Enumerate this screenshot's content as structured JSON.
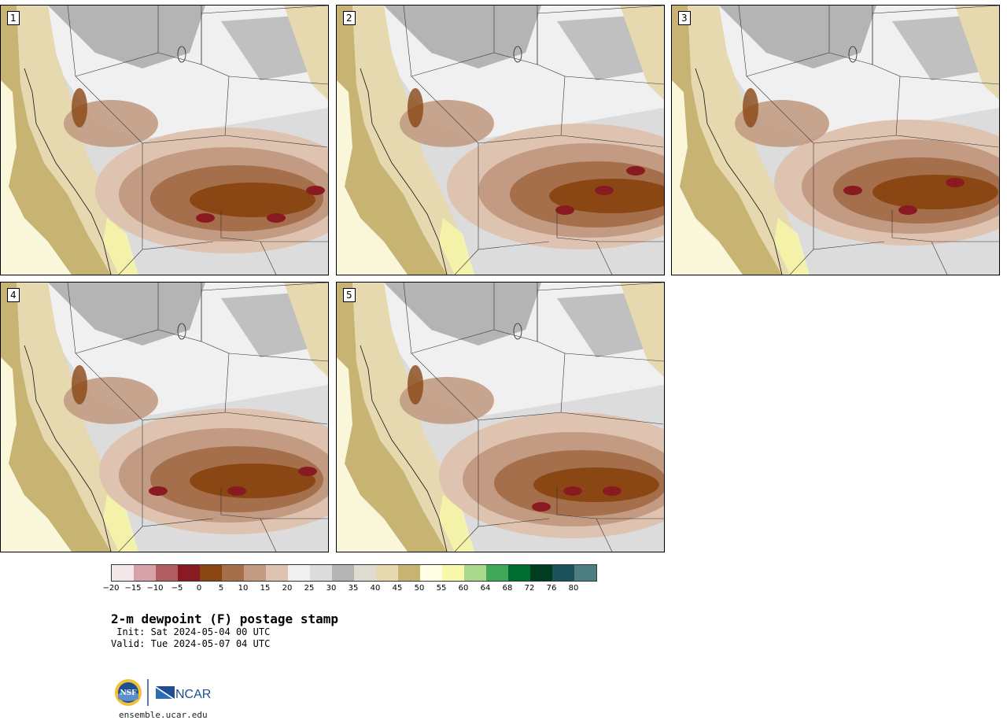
{
  "panels": [
    {
      "label": "1"
    },
    {
      "label": "2"
    },
    {
      "label": "3"
    },
    {
      "label": "4"
    },
    {
      "label": "5"
    }
  ],
  "colorbar": {
    "colors": [
      "#f3e6e8",
      "#d4a2a7",
      "#b05c62",
      "#8a1a22",
      "#8a4714",
      "#a56f4c",
      "#c29b82",
      "#dfc3b1",
      "#f0f0f0",
      "#dcdcdc",
      "#b4b4b4",
      "#dedbd0",
      "#e6d9b0",
      "#c8b472",
      "#fffde4",
      "#f8f8a8",
      "#a8d88c",
      "#40a858",
      "#006d30",
      "#003d20",
      "#1b5158",
      "#4d7f82"
    ],
    "ticks": [
      "−20",
      "−15",
      "−10",
      "−5",
      "0",
      "5",
      "10",
      "15",
      "20",
      "25",
      "30",
      "35",
      "40",
      "45",
      "50",
      "55",
      "60",
      "64",
      "68",
      "72",
      "76",
      "80"
    ]
  },
  "title": "2-m dewpoint (F) postage stamp",
  "init_text": " Init: Sat 2024-05-04 00 UTC",
  "valid_text": "Valid: Tue 2024-05-07 04 UTC",
  "logos": {
    "nsf": "NSF",
    "ncar": "NCAR"
  },
  "site": "ensemble.ucar.edu"
}
